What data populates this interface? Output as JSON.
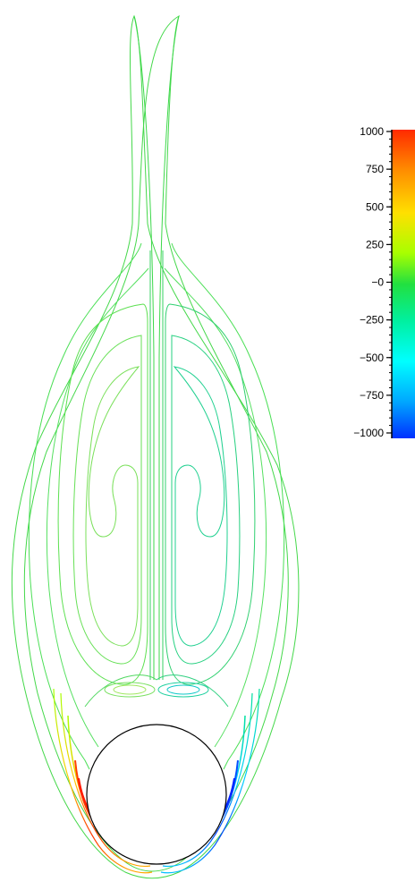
{
  "chart_data": {
    "type": "contour",
    "colorbar": {
      "min": -1000,
      "max": 1000,
      "tick_values": [
        1000,
        750,
        500,
        250,
        0,
        -250,
        -500,
        -750,
        -1000
      ],
      "tick_labels": [
        "1000",
        "750",
        "500",
        "250",
        "−0",
        "−250",
        "−500",
        "−750",
        "−1000"
      ],
      "colormap": [
        "#0000ff",
        "#00ffff",
        "#00ff00",
        "#ffff00",
        "#ff0000"
      ],
      "placement": "right"
    },
    "grid": false,
    "obstacle": "circular-cylinder"
  }
}
